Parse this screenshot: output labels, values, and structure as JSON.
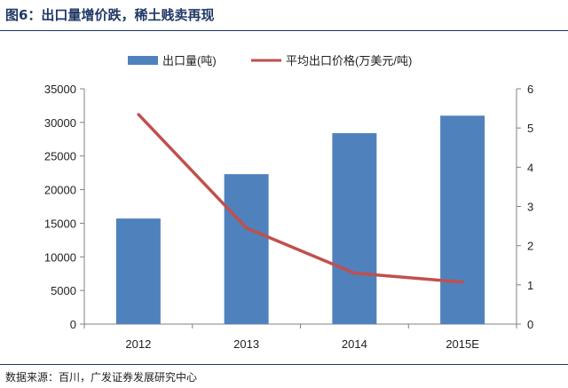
{
  "figure_title": "图6：出口量增价跌，稀土贱卖再现",
  "source": "数据来源：百川，广发证券发展研究中心",
  "chart_data": {
    "type": "bar+line",
    "categories": [
      "2012",
      "2013",
      "2014",
      "2015E"
    ],
    "series": [
      {
        "name": "出口量(吨)",
        "type": "bar",
        "axis": "left",
        "color": "#4f81bd",
        "values": [
          15700,
          22300,
          28400,
          31000
        ]
      },
      {
        "name": "平均出口价格(万美元/吨)",
        "type": "line",
        "axis": "right",
        "color": "#c0504d",
        "values": [
          5.35,
          2.45,
          1.3,
          1.07
        ]
      }
    ],
    "y_left": {
      "min": 0,
      "max": 35000,
      "ticks": [
        "0",
        "5000",
        "10000",
        "15000",
        "20000",
        "25000",
        "30000",
        "35000"
      ]
    },
    "y_right": {
      "min": 0,
      "max": 6,
      "ticks": [
        "0",
        "1",
        "2",
        "3",
        "4",
        "5",
        "6"
      ]
    },
    "legend_position": "top",
    "grid": false
  }
}
